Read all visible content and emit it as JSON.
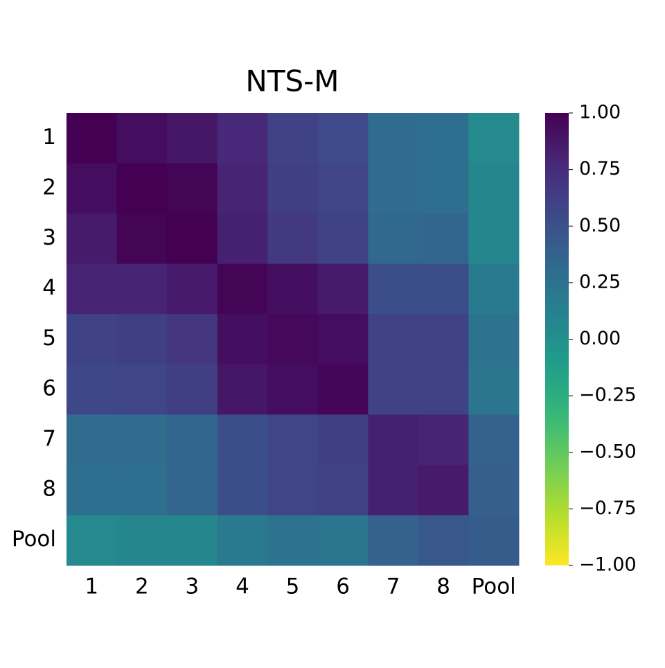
{
  "chart_data": {
    "type": "heatmap",
    "title": "NTS-M",
    "x_categories": [
      "1",
      "2",
      "3",
      "4",
      "5",
      "6",
      "7",
      "8",
      "Pool"
    ],
    "y_categories": [
      "1",
      "2",
      "3",
      "4",
      "5",
      "6",
      "7",
      "8",
      "Pool"
    ],
    "values": [
      [
        1.0,
        0.93,
        0.88,
        0.78,
        0.6,
        0.55,
        0.3,
        0.28,
        0.05
      ],
      [
        0.93,
        1.0,
        0.98,
        0.8,
        0.62,
        0.58,
        0.3,
        0.28,
        0.07
      ],
      [
        0.85,
        0.98,
        1.0,
        0.82,
        0.66,
        0.6,
        0.33,
        0.35,
        0.08
      ],
      [
        0.8,
        0.8,
        0.86,
        0.98,
        0.92,
        0.85,
        0.52,
        0.52,
        0.18
      ],
      [
        0.6,
        0.62,
        0.68,
        0.92,
        0.96,
        0.93,
        0.6,
        0.6,
        0.25
      ],
      [
        0.56,
        0.58,
        0.62,
        0.88,
        0.93,
        0.97,
        0.6,
        0.6,
        0.22
      ],
      [
        0.3,
        0.3,
        0.35,
        0.52,
        0.58,
        0.62,
        0.82,
        0.8,
        0.38
      ],
      [
        0.28,
        0.28,
        0.35,
        0.52,
        0.58,
        0.6,
        0.82,
        0.86,
        0.4
      ],
      [
        0.05,
        0.07,
        0.08,
        0.18,
        0.25,
        0.22,
        0.38,
        0.45,
        0.42
      ]
    ],
    "colormap": "viridis_r",
    "clim": [
      -1,
      1
    ],
    "cticks": [
      {
        "value": 1,
        "label": "1.00"
      },
      {
        "value": 0.75,
        "label": "0.75"
      },
      {
        "value": 0.5,
        "label": "0.50"
      },
      {
        "value": 0.25,
        "label": "0.25"
      },
      {
        "value": 0,
        "label": "0.00"
      },
      {
        "value": -0.25,
        "label": "−0.25"
      },
      {
        "value": -0.5,
        "label": "−0.50"
      },
      {
        "value": -0.75,
        "label": "−0.75"
      },
      {
        "value": -1,
        "label": "−1.00"
      }
    ]
  }
}
